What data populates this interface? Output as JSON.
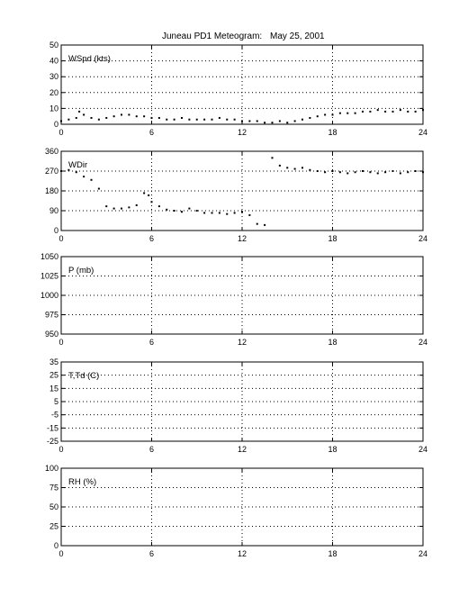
{
  "figure": {
    "title_left": "Juneau PD1 Meteogram:",
    "title_right": "May 25, 2001"
  },
  "chart_data": [
    {
      "type": "scatter",
      "label": "WSpd (kts)",
      "xlim": [
        0,
        24
      ],
      "ylim": [
        0,
        50
      ],
      "xticks": [
        0,
        6,
        12,
        18,
        24
      ],
      "yticks": [
        0,
        10,
        20,
        30,
        40,
        50
      ],
      "grid": true,
      "x": [
        0,
        0.5,
        1,
        1.2,
        1.5,
        2,
        2.5,
        3,
        3.5,
        4,
        4.5,
        5,
        5.5,
        6,
        6.5,
        7,
        7.5,
        8,
        8.5,
        9,
        9.5,
        10,
        10.5,
        11,
        11.5,
        12,
        12.5,
        13,
        13.5,
        14,
        14.5,
        15,
        15.5,
        16,
        16.5,
        17,
        17.5,
        18,
        18.5,
        19,
        19.5,
        20,
        20.5,
        21,
        21.5,
        22,
        22.5,
        23,
        23.5,
        24
      ],
      "y": [
        2,
        3,
        4,
        8,
        6,
        4,
        3,
        4,
        5,
        6,
        6,
        5,
        5,
        4,
        4,
        3,
        3,
        4,
        3,
        3,
        3,
        3,
        4,
        3,
        3,
        2,
        2,
        2,
        1,
        1,
        2,
        1,
        2,
        3,
        4,
        5,
        6,
        6,
        7,
        7,
        7,
        8,
        8,
        9,
        8,
        8,
        9,
        8,
        8,
        9
      ]
    },
    {
      "type": "scatter",
      "label": "WDir",
      "xlim": [
        0,
        24
      ],
      "ylim": [
        0,
        360
      ],
      "xticks": [
        0,
        6,
        12,
        18,
        24
      ],
      "yticks": [
        0,
        90,
        180,
        270,
        360
      ],
      "grid": true,
      "x": [
        0,
        0.5,
        1,
        1.5,
        2,
        2.5,
        3,
        3.5,
        4,
        4.5,
        5,
        5.5,
        5.8,
        6,
        6.5,
        7,
        7.5,
        8,
        8.5,
        9,
        9.5,
        10,
        10.5,
        11,
        11.5,
        12,
        12.5,
        13,
        13.5,
        14,
        14.5,
        15,
        15.5,
        16,
        16.5,
        17,
        17.5,
        18,
        18.5,
        19,
        19.5,
        20,
        20.5,
        21,
        21.5,
        22,
        22.5,
        23,
        23.5,
        24
      ],
      "y": [
        270,
        275,
        265,
        245,
        230,
        190,
        110,
        100,
        100,
        105,
        115,
        170,
        160,
        130,
        110,
        95,
        90,
        85,
        100,
        90,
        80,
        80,
        80,
        75,
        80,
        85,
        70,
        30,
        25,
        330,
        295,
        285,
        280,
        285,
        275,
        270,
        265,
        270,
        265,
        260,
        265,
        270,
        265,
        260,
        265,
        270,
        260,
        265,
        270,
        265
      ]
    },
    {
      "type": "scatter",
      "label": "P (mb)",
      "xlim": [
        0,
        24
      ],
      "ylim": [
        950,
        1050
      ],
      "xticks": [
        0,
        6,
        12,
        18,
        24
      ],
      "yticks": [
        950,
        975,
        1000,
        1025,
        1050
      ],
      "grid": true,
      "x": [],
      "y": []
    },
    {
      "type": "scatter",
      "label": "T,Td (C)",
      "xlim": [
        0,
        24
      ],
      "ylim": [
        -25,
        35
      ],
      "xticks": [
        0,
        6,
        12,
        18,
        24
      ],
      "yticks": [
        -25,
        -15,
        -5,
        5,
        15,
        25,
        35
      ],
      "grid": true,
      "x": [],
      "y": []
    },
    {
      "type": "scatter",
      "label": "RH (%)",
      "xlim": [
        0,
        24
      ],
      "ylim": [
        0,
        100
      ],
      "xticks": [
        0,
        6,
        12,
        18,
        24
      ],
      "yticks": [
        0,
        25,
        50,
        75,
        100
      ],
      "grid": true,
      "x": [],
      "y": []
    }
  ]
}
